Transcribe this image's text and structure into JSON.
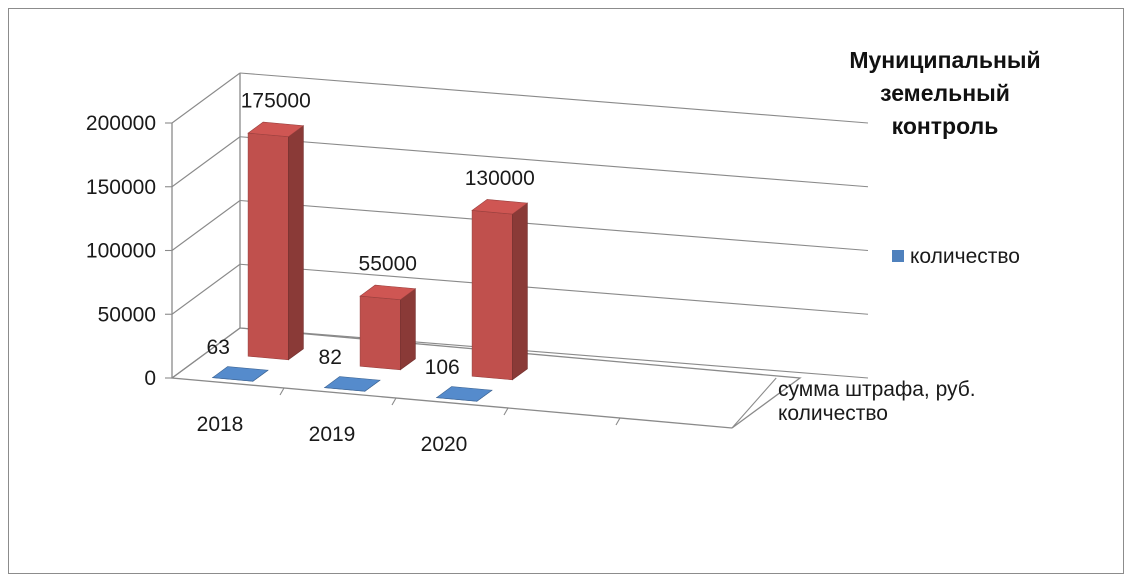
{
  "chart_data": {
    "type": "bar",
    "title": "Муниципальный земельный контроль",
    "title_lines": [
      "Муниципальный",
      "земельный",
      "контроль"
    ],
    "categories": [
      "2018",
      "2019",
      "2020"
    ],
    "series": [
      {
        "name": "количество",
        "values": [
          63,
          82,
          106
        ],
        "color": "#4f81bd"
      },
      {
        "name": "сумма штрафа, руб.",
        "values": [
          175000,
          55000,
          130000
        ],
        "color": "#c0504d"
      }
    ],
    "y_ticks": [
      0,
      50000,
      100000,
      150000,
      200000
    ],
    "ylim": [
      0,
      200000
    ],
    "legend": {
      "position": "right",
      "entries": [
        "количество"
      ]
    },
    "depth_labels": [
      "сумма штрафа, руб.",
      "количество"
    ],
    "grid": true,
    "style": "3d-column"
  }
}
